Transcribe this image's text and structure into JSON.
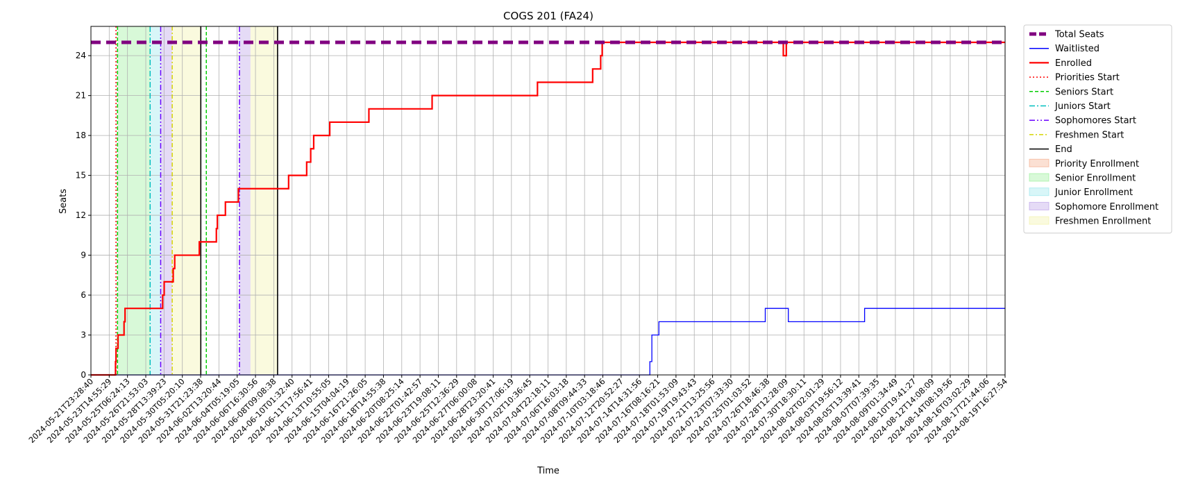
{
  "chart_data": {
    "type": "line",
    "title": "COGS 201 (FA24)",
    "xlabel": "Time",
    "ylabel": "Seats",
    "ylim": [
      0,
      26.2
    ],
    "y_ticks": [
      0,
      3,
      6,
      9,
      12,
      15,
      18,
      21,
      24
    ],
    "x_range_days": [
      0,
      91.1
    ],
    "x_ticks": [
      "2024-05-21T23:28:40",
      "2024-05-23T14:55:29",
      "2024-05-25T06:24:13",
      "2024-05-26T21:53:03",
      "2024-05-28T13:39:23",
      "2024-05-30T05:20:10",
      "2024-05-31T21:23:38",
      "2024-06-02T13:20:44",
      "2024-06-04T05:19:05",
      "2024-06-06T16:30:56",
      "2024-06-08T09:08:38",
      "2024-06-10T01:32:40",
      "2024-06-11T17:56:41",
      "2024-06-13T10:55:05",
      "2024-06-15T04:04:19",
      "2024-06-16T21:26:05",
      "2024-06-18T14:55:38",
      "2024-06-20T08:25:14",
      "2024-06-22T01:42:57",
      "2024-06-23T19:08:11",
      "2024-06-25T12:36:29",
      "2024-06-27T06:00:08",
      "2024-06-28T23:20:41",
      "2024-06-30T17:06:19",
      "2024-07-02T10:36:45",
      "2024-07-04T22:18:11",
      "2024-07-06T16:03:18",
      "2024-07-08T09:44:33",
      "2024-07-10T03:18:46",
      "2024-07-12T20:52:27",
      "2024-07-14T14:31:56",
      "2024-07-16T08:16:21",
      "2024-07-18T01:53:09",
      "2024-07-19T19:43:43",
      "2024-07-21T13:25:56",
      "2024-07-23T07:33:30",
      "2024-07-25T01:03:52",
      "2024-07-26T18:46:38",
      "2024-07-28T12:28:09",
      "2024-07-30T18:30:11",
      "2024-08-02T02:01:29",
      "2024-08-03T19:56:12",
      "2024-08-05T13:39:41",
      "2024-08-07T07:39:35",
      "2024-08-09T01:34:49",
      "2024-08-10T19:41:27",
      "2024-08-12T14:08:09",
      "2024-08-14T08:19:56",
      "2024-08-16T03:02:29",
      "2024-08-17T21:44:06",
      "2024-08-19T16:27:54"
    ],
    "grid": true,
    "legend_position": "outside-right",
    "series": [
      {
        "name": "Total Seats",
        "color": "#800080",
        "style": "dashed-thick",
        "points": [
          [
            0,
            25
          ],
          [
            91.1,
            25
          ]
        ]
      },
      {
        "name": "Waitlisted",
        "color": "#0000ff",
        "style": "step-thin",
        "points": [
          [
            0,
            0
          ],
          [
            55.7,
            0
          ],
          [
            55.7,
            1
          ],
          [
            55.9,
            1
          ],
          [
            55.9,
            3
          ],
          [
            56.6,
            3
          ],
          [
            56.6,
            4
          ],
          [
            67.2,
            4
          ],
          [
            67.2,
            5
          ],
          [
            69.5,
            5
          ],
          [
            69.5,
            4
          ],
          [
            77.1,
            4
          ],
          [
            77.1,
            5
          ],
          [
            91.1,
            5
          ]
        ]
      },
      {
        "name": "Enrolled",
        "color": "#ff0000",
        "style": "step",
        "points": [
          [
            0,
            0
          ],
          [
            2.45,
            0
          ],
          [
            2.45,
            1
          ],
          [
            2.5,
            1
          ],
          [
            2.5,
            2
          ],
          [
            2.7,
            2
          ],
          [
            2.7,
            3
          ],
          [
            3.3,
            3
          ],
          [
            3.3,
            4
          ],
          [
            3.4,
            4
          ],
          [
            3.4,
            5
          ],
          [
            7.15,
            5
          ],
          [
            7.15,
            6
          ],
          [
            7.3,
            6
          ],
          [
            7.3,
            7
          ],
          [
            8.2,
            7
          ],
          [
            8.2,
            8
          ],
          [
            8.35,
            8
          ],
          [
            8.35,
            9
          ],
          [
            10.8,
            9
          ],
          [
            10.8,
            10
          ],
          [
            12.5,
            10
          ],
          [
            12.5,
            11
          ],
          [
            12.6,
            11
          ],
          [
            12.6,
            12
          ],
          [
            13.4,
            12
          ],
          [
            13.4,
            13
          ],
          [
            14.7,
            13
          ],
          [
            14.7,
            14
          ],
          [
            19.7,
            14
          ],
          [
            19.7,
            15
          ],
          [
            21.5,
            15
          ],
          [
            21.5,
            16
          ],
          [
            21.9,
            16
          ],
          [
            21.9,
            17
          ],
          [
            22.2,
            17
          ],
          [
            22.2,
            18
          ],
          [
            23.8,
            18
          ],
          [
            23.8,
            19
          ],
          [
            27.7,
            19
          ],
          [
            27.7,
            20
          ],
          [
            34.0,
            20
          ],
          [
            34.0,
            21
          ],
          [
            44.5,
            21
          ],
          [
            44.5,
            22
          ],
          [
            50.0,
            22
          ],
          [
            50.0,
            23
          ],
          [
            50.8,
            23
          ],
          [
            50.8,
            24
          ],
          [
            50.95,
            24
          ],
          [
            50.95,
            25
          ],
          [
            69.0,
            25
          ],
          [
            69.0,
            24
          ],
          [
            69.3,
            24
          ],
          [
            69.3,
            25
          ],
          [
            91.1,
            25
          ]
        ]
      }
    ],
    "vertical_lines": [
      {
        "name": "Priorities Start",
        "color": "#ff0000",
        "style": "dotted",
        "x": [
          2.5
        ]
      },
      {
        "name": "Seniors Start",
        "color": "#00cc00",
        "style": "dashed",
        "x": [
          2.65,
          11.5
        ]
      },
      {
        "name": "Juniors Start",
        "color": "#00bfbf",
        "style": "dashdot",
        "x": [
          5.9
        ]
      },
      {
        "name": "Sophomores Start",
        "color": "#6a00ff",
        "style": "dashdotdot",
        "x": [
          6.95,
          14.8
        ]
      },
      {
        "name": "Freshmen Start",
        "color": "#d4d400",
        "style": "dashdot-loose",
        "x": [
          8.1
        ]
      },
      {
        "name": "End",
        "color": "#000000",
        "style": "solid",
        "x": [
          10.95,
          18.6
        ]
      }
    ],
    "spans": [
      {
        "name": "Priority Enrollment",
        "color": "#f4a582",
        "ranges": []
      },
      {
        "name": "Senior Enrollment",
        "color": "#90ee90",
        "ranges": [
          [
            2.65,
            5.9
          ]
        ]
      },
      {
        "name": "Junior Enrollment",
        "color": "#8ee4eb",
        "ranges": [
          [
            5.9,
            6.95
          ]
        ]
      },
      {
        "name": "Sophomore Enrollment",
        "color": "#b497e6",
        "ranges": [
          [
            6.95,
            8.1
          ],
          [
            14.8,
            15.9
          ]
        ]
      },
      {
        "name": "Freshmen Enrollment",
        "color": "#f0f0a0",
        "ranges": [
          [
            8.1,
            10.95
          ],
          [
            15.9,
            18.6
          ]
        ]
      }
    ]
  }
}
